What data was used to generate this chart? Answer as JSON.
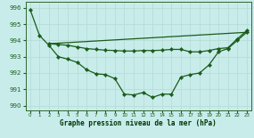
{
  "title": "Graphe pression niveau de la mer (hPa)",
  "bg_color": "#c8ecea",
  "grid_color": "#b8ddd8",
  "line_color": "#1a5c1a",
  "xlim": [
    -0.5,
    23.5
  ],
  "ylim": [
    989.7,
    996.4
  ],
  "yticks": [
    990,
    991,
    992,
    993,
    994,
    995,
    996
  ],
  "xticks": [
    0,
    1,
    2,
    3,
    4,
    5,
    6,
    7,
    8,
    9,
    10,
    11,
    12,
    13,
    14,
    15,
    16,
    17,
    18,
    19,
    20,
    21,
    22,
    23
  ],
  "curve1_x": [
    0,
    1,
    2,
    3,
    4,
    5,
    6,
    7,
    8,
    9,
    10,
    11,
    12,
    13,
    14,
    15,
    16,
    17,
    18,
    19,
    20,
    21,
    22,
    23
  ],
  "curve1_y": [
    995.9,
    994.3,
    993.7,
    993.0,
    992.85,
    992.65,
    992.2,
    991.95,
    991.9,
    991.65,
    990.7,
    990.65,
    990.8,
    990.5,
    990.7,
    990.7,
    991.75,
    991.9,
    992.0,
    992.5,
    993.3,
    993.5,
    994.0,
    994.5
  ],
  "curve2_x": [
    2,
    3,
    4,
    5,
    6,
    7,
    8,
    9,
    10,
    11,
    12,
    13,
    14,
    15,
    16,
    17,
    18,
    19,
    20,
    21,
    22,
    23
  ],
  "curve2_y": [
    993.8,
    993.75,
    993.7,
    993.6,
    993.5,
    993.45,
    993.4,
    993.38,
    993.35,
    993.35,
    993.38,
    993.38,
    993.4,
    993.45,
    993.45,
    993.3,
    993.3,
    993.38,
    993.5,
    993.55,
    994.1,
    994.6
  ],
  "curve3_x": [
    2,
    23
  ],
  "curve3_y": [
    993.8,
    994.5
  ]
}
